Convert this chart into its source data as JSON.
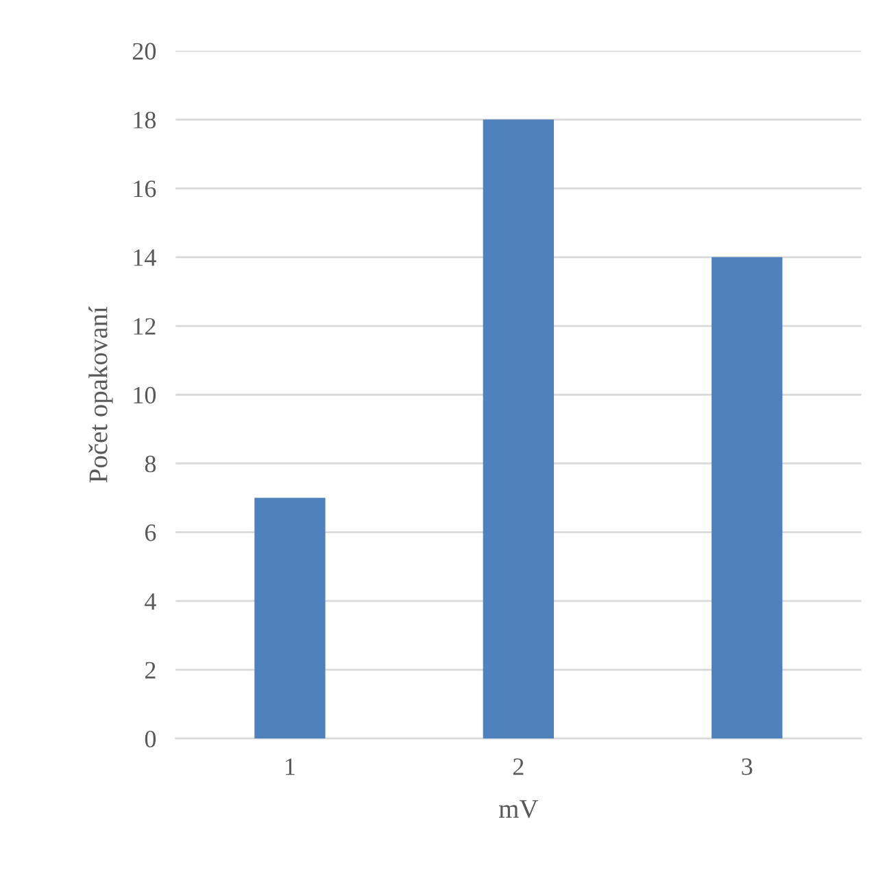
{
  "chart_data": {
    "type": "bar",
    "xlabel": "mV",
    "ylabel": "Počet opakovaní",
    "categories": [
      "1",
      "2",
      "3"
    ],
    "values": [
      7,
      18,
      14
    ],
    "color": "#4f81bd",
    "ylim": [
      0,
      20
    ],
    "yticks": [
      0,
      2,
      4,
      6,
      8,
      10,
      12,
      14,
      16,
      18,
      20
    ],
    "grid": "y",
    "legend": false
  }
}
